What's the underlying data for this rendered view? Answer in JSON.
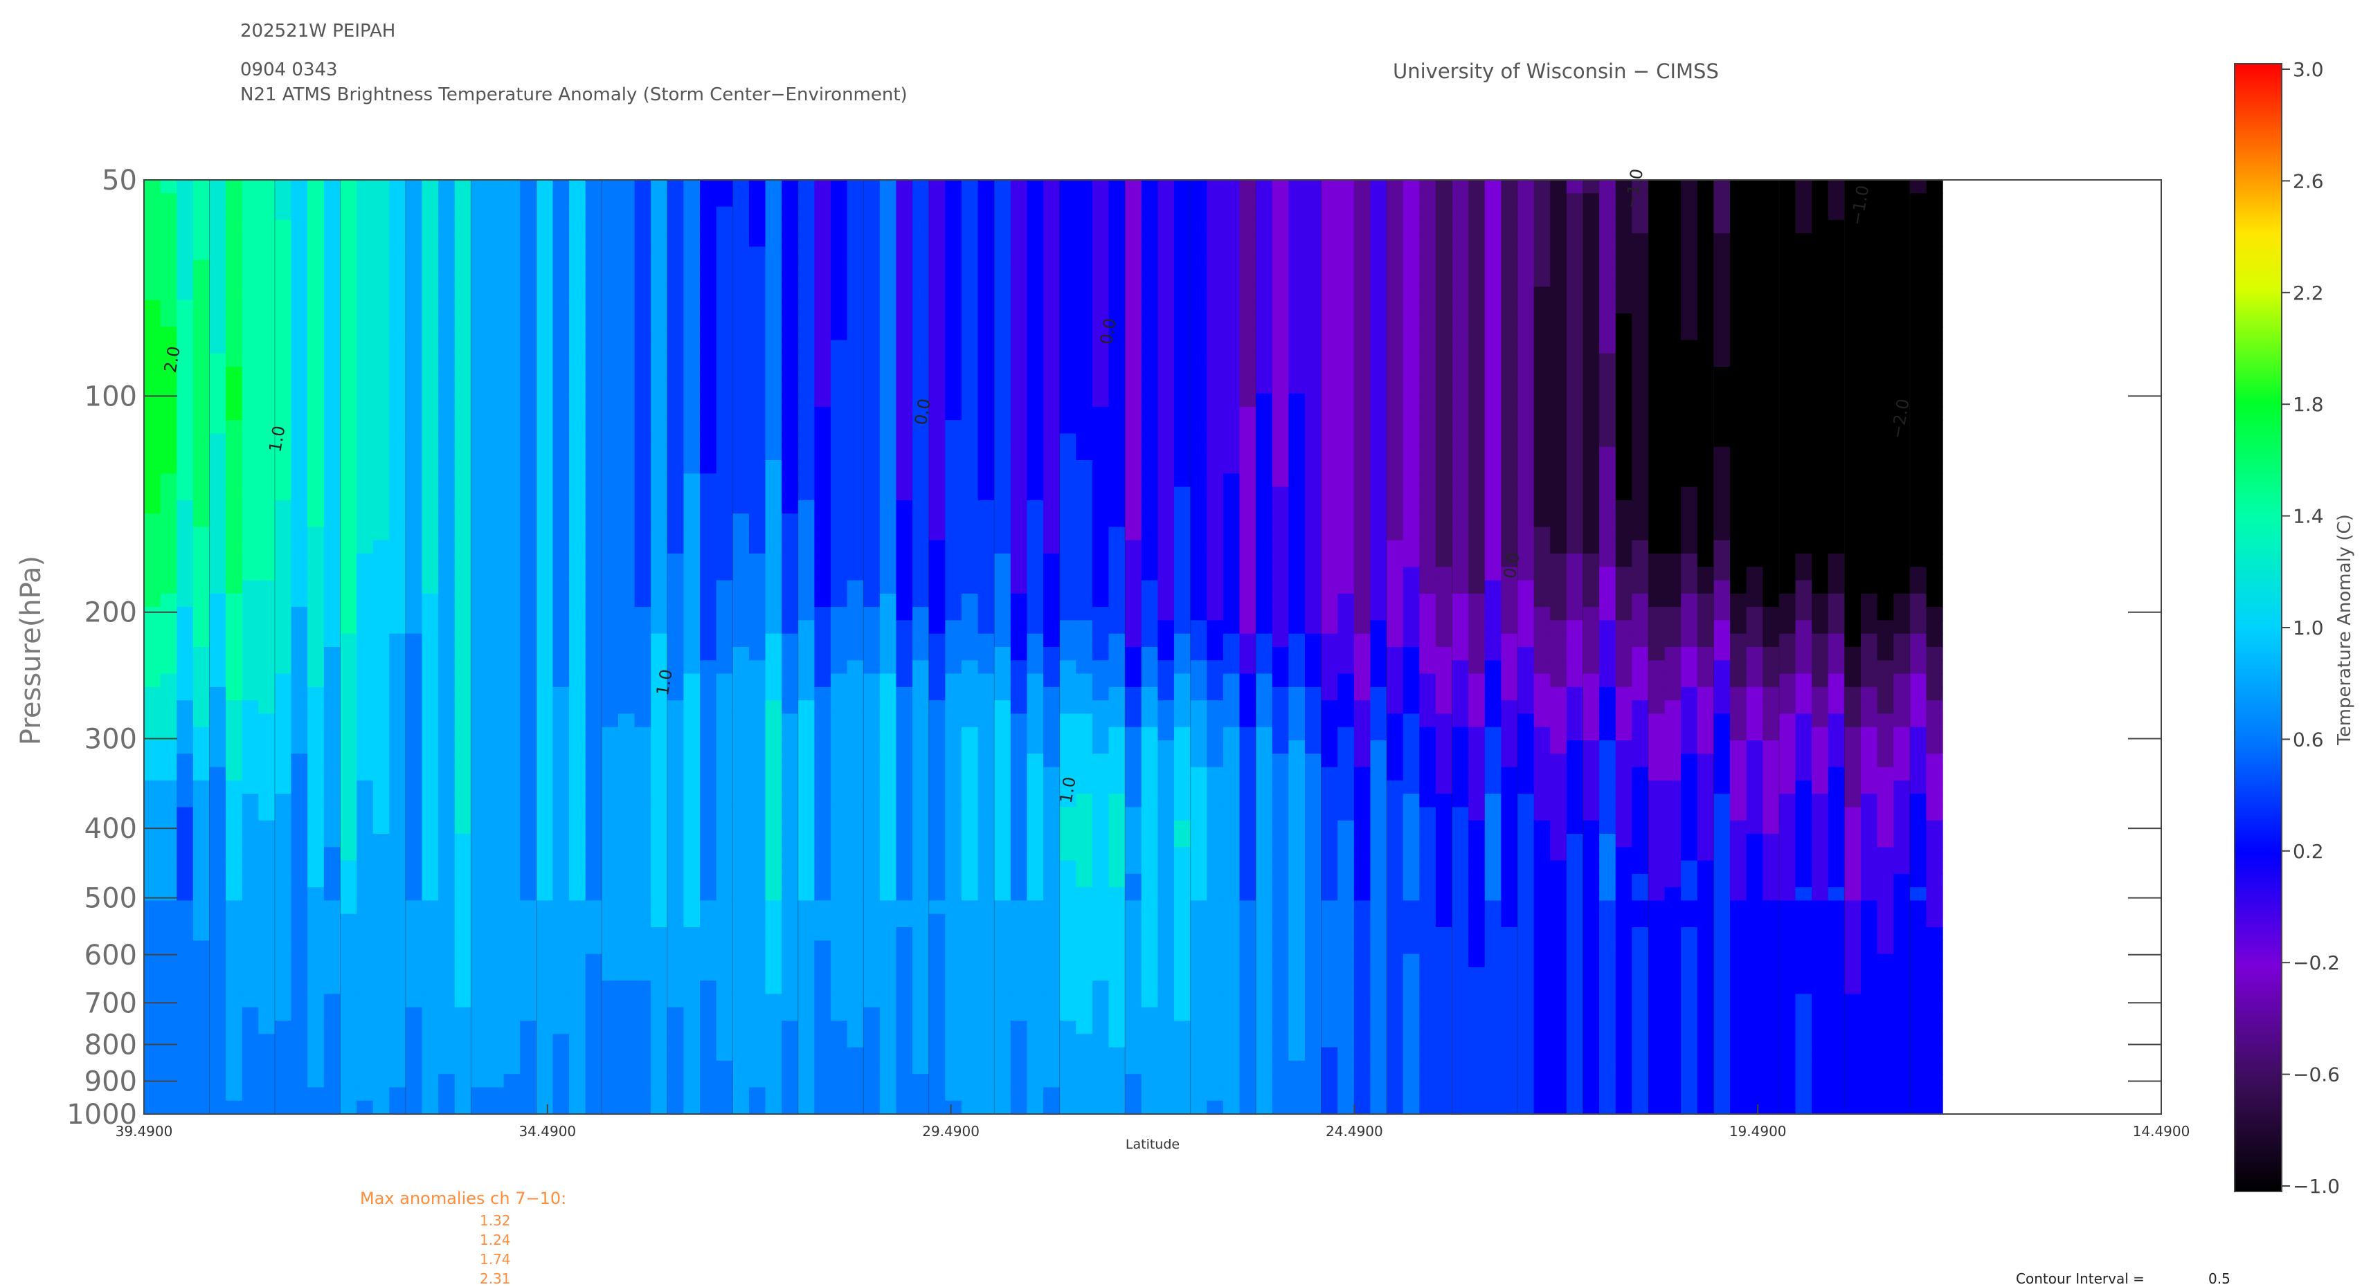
{
  "header": {
    "storm_id": "202521W PEIPAH",
    "datetime": "0904 0343",
    "product": "N21 ATMS Brightness Temperature Anomaly (Storm Center−Environment)",
    "institution": "University of Wisconsin − CIMSS"
  },
  "max_anomalies": {
    "label": "Max anomalies ch 7−10:",
    "values": [
      "1.32",
      "1.24",
      "1.74",
      "2.31"
    ]
  },
  "contour_interval": {
    "label": "Contour Interval =",
    "value": "0.5"
  },
  "colorbar": {
    "label": "Temperature Anomaly (C)",
    "ticks": [
      "3.0",
      "2.6",
      "2.2",
      "1.8",
      "1.4",
      "1.0",
      "0.6",
      "0.2",
      "−0.2",
      "−0.6",
      "−1.0"
    ],
    "min": -1.0,
    "max": 3.0
  },
  "chart_data": {
    "type": "heatmap",
    "xlabel": "Latitude",
    "ylabel": "Pressure(hPa)",
    "x_ticks": [
      "39.4900",
      "34.4900",
      "29.4900",
      "24.4900",
      "19.4900",
      "14.4900"
    ],
    "xlim": [
      39.49,
      14.49
    ],
    "x_data_extent": [
      39.49,
      17.2
    ],
    "y_ticks": [
      "50",
      "100",
      "200",
      "300",
      "400",
      "500",
      "600",
      "700",
      "800",
      "900",
      "1000"
    ],
    "ylim": [
      1000,
      50
    ],
    "y_scale": "log",
    "contour_labels": [
      "2.0",
      "1.0",
      "0.0",
      "−1.0",
      "−2.0"
    ],
    "x": [
      39.49,
      38.0,
      36.5,
      35.0,
      33.5,
      32.0,
      30.5,
      29.0,
      27.5,
      26.0,
      24.5,
      23.0,
      21.5,
      20.0,
      18.5,
      17.2
    ],
    "pressure_levels": [
      50,
      100,
      150,
      200,
      250,
      300,
      400,
      500,
      700,
      1000
    ],
    "values": [
      [
        1.4,
        1.3,
        1.1,
        0.8,
        0.6,
        0.3,
        0.3,
        0.2,
        0.1,
        0.0,
        -0.2,
        -0.4,
        -0.6,
        -0.9,
        -1.0,
        -1.1
      ],
      [
        1.8,
        1.4,
        1.1,
        0.8,
        0.6,
        0.4,
        0.3,
        0.2,
        0.1,
        0.0,
        -0.2,
        -0.5,
        -0.8,
        -1.2,
        -1.6,
        -1.7
      ],
      [
        1.6,
        1.3,
        1.1,
        0.8,
        0.6,
        0.5,
        0.3,
        0.3,
        0.2,
        0.1,
        -0.2,
        -0.5,
        -0.7,
        -1.1,
        -1.3,
        -1.4
      ],
      [
        1.4,
        1.2,
        1.0,
        0.8,
        0.6,
        0.6,
        0.5,
        0.4,
        0.3,
        0.1,
        -0.1,
        -0.3,
        -0.4,
        -0.6,
        -0.8,
        -0.8
      ],
      [
        1.2,
        1.1,
        0.9,
        0.8,
        0.7,
        0.8,
        0.7,
        0.7,
        0.6,
        0.5,
        0.1,
        -0.1,
        -0.2,
        -0.3,
        -0.5,
        -0.5
      ],
      [
        1.0,
        1.0,
        0.9,
        0.8,
        0.8,
        0.9,
        0.8,
        0.8,
        0.9,
        0.7,
        0.3,
        0.1,
        0.0,
        -0.1,
        -0.2,
        -0.3
      ],
      [
        0.6,
        0.8,
        0.9,
        0.8,
        0.8,
        0.9,
        0.8,
        0.8,
        1.1,
        0.8,
        0.5,
        0.3,
        0.2,
        0.1,
        0.0,
        0.0
      ],
      [
        0.6,
        0.8,
        0.8,
        0.8,
        0.8,
        0.9,
        0.8,
        0.8,
        1.0,
        0.8,
        0.5,
        0.3,
        0.3,
        0.2,
        0.1,
        0.1
      ],
      [
        0.6,
        0.7,
        0.8,
        0.8,
        0.7,
        0.8,
        0.7,
        0.8,
        0.9,
        0.8,
        0.5,
        0.4,
        0.3,
        0.3,
        0.2,
        0.2
      ],
      [
        0.6,
        0.6,
        0.7,
        0.7,
        0.6,
        0.7,
        0.6,
        0.7,
        0.8,
        0.7,
        0.5,
        0.4,
        0.3,
        0.3,
        0.2,
        0.2
      ]
    ]
  }
}
